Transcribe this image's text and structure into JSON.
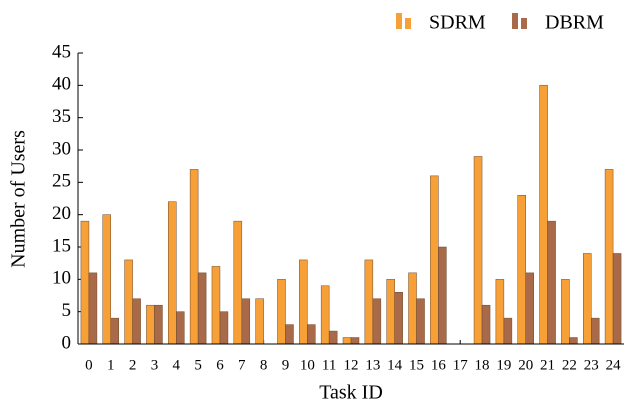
{
  "chart_data": {
    "type": "bar",
    "xlabel": "Task ID",
    "ylabel": "Number of Users",
    "categories": [
      0,
      1,
      2,
      3,
      4,
      5,
      6,
      7,
      8,
      9,
      10,
      11,
      12,
      13,
      14,
      15,
      16,
      17,
      18,
      19,
      20,
      21,
      22,
      23,
      24
    ],
    "series": [
      {
        "name": "SDRM",
        "color": "#f8a038",
        "values": [
          19,
          20,
          13,
          6,
          22,
          27,
          12,
          19,
          7,
          10,
          13,
          9,
          1,
          13,
          10,
          11,
          26,
          0,
          29,
          10,
          23,
          40,
          10,
          14,
          27
        ]
      },
      {
        "name": "DBRM",
        "color": "#a86a48",
        "values": [
          11,
          4,
          7,
          6,
          5,
          11,
          5,
          7,
          0,
          3,
          3,
          2,
          1,
          7,
          8,
          7,
          15,
          0,
          6,
          4,
          11,
          19,
          1,
          4,
          14
        ]
      }
    ],
    "ylim": [
      0,
      45
    ],
    "yticks": [
      0,
      5,
      10,
      15,
      20,
      25,
      30,
      35,
      40,
      45
    ],
    "legend": "top-right"
  }
}
